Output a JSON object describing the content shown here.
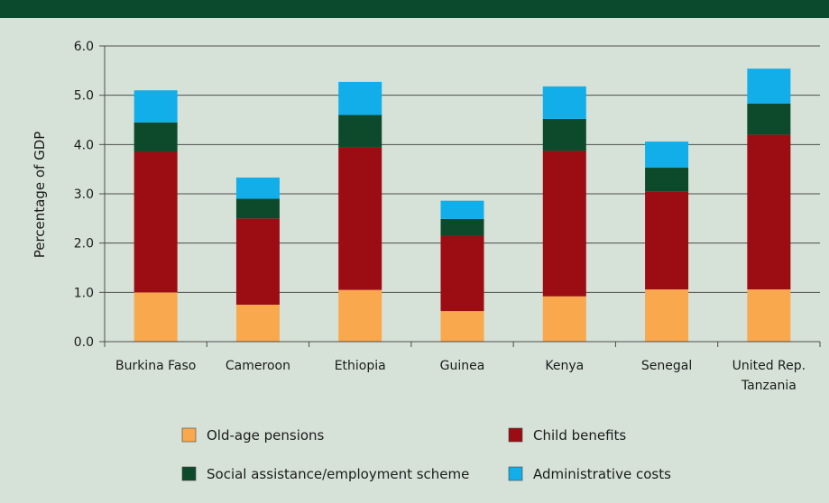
{
  "chart_data": {
    "type": "bar",
    "stacked": true,
    "ylabel": "Percentage of GDP",
    "xlabel": "",
    "ylim": [
      0,
      6
    ],
    "y_ticks": [
      "0.0",
      "1.0",
      "2.0",
      "3.0",
      "4.0",
      "5.0",
      "6.0"
    ],
    "grid": true,
    "legend_position": "bottom",
    "categories": [
      [
        "Burkina Faso"
      ],
      [
        "Cameroon"
      ],
      [
        "Ethiopia"
      ],
      [
        "Guinea"
      ],
      [
        "Kenya"
      ],
      [
        "Senegal"
      ],
      [
        "United Rep.",
        "Tanzania"
      ]
    ],
    "series": [
      {
        "name": "Old-age pensions",
        "color": "#f9a84e",
        "values": [
          1.0,
          0.75,
          1.05,
          0.62,
          0.92,
          1.06,
          1.06
        ]
      },
      {
        "name": "Child benefits",
        "color": "#9b0c13",
        "values": [
          2.85,
          1.75,
          2.9,
          1.53,
          2.95,
          1.98,
          3.14
        ]
      },
      {
        "name": "Social assistance/employment scheme",
        "color": "#0d4a2b",
        "values": [
          0.6,
          0.4,
          0.65,
          0.34,
          0.65,
          0.49,
          0.63
        ]
      },
      {
        "name": "Administrative costs",
        "color": "#11aee9",
        "values": [
          0.65,
          0.43,
          0.67,
          0.37,
          0.66,
          0.53,
          0.71
        ]
      }
    ],
    "legend_order": [
      0,
      1,
      2,
      3
    ]
  }
}
